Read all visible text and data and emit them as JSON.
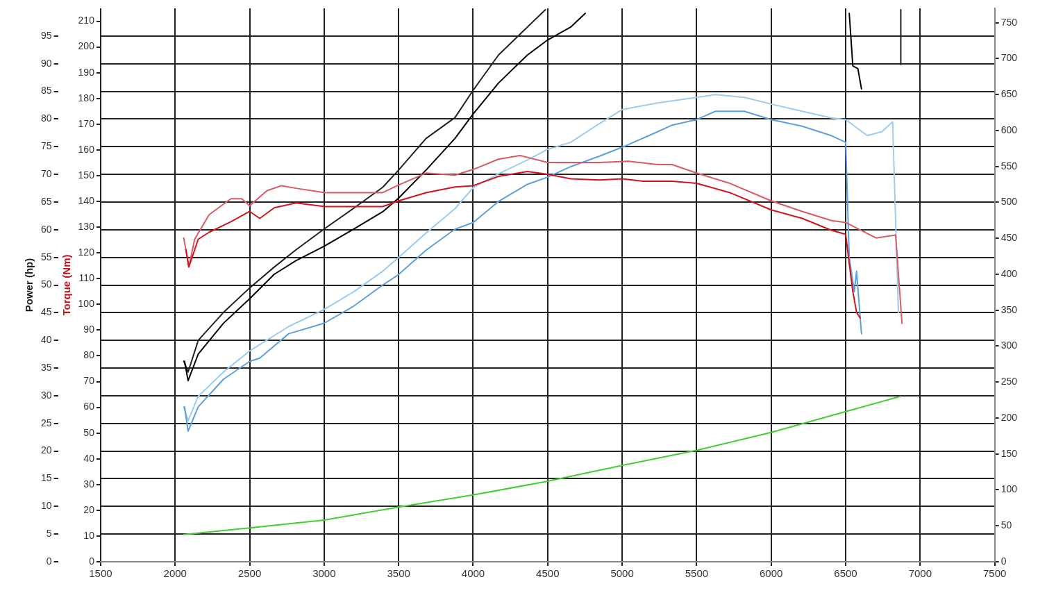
{
  "chart_data": {
    "type": "line",
    "xlim": [
      1500,
      7500
    ],
    "xticks": [
      1500,
      2000,
      2500,
      3000,
      3500,
      4000,
      4500,
      5000,
      5500,
      6000,
      6500,
      7000,
      7500
    ],
    "ylabel": "Power (hp)",
    "ylim": [
      0,
      100
    ],
    "yticks": [
      0,
      5,
      10,
      15,
      20,
      25,
      30,
      35,
      40,
      45,
      50,
      55,
      60,
      65,
      70,
      75,
      80,
      85,
      90,
      95
    ],
    "y3label": "Torque (Nm)",
    "y3lim": [
      0,
      215
    ],
    "y3ticks": [
      0,
      10,
      20,
      30,
      40,
      50,
      60,
      70,
      80,
      90,
      100,
      110,
      120,
      130,
      140,
      150,
      160,
      170,
      180,
      190,
      200,
      210
    ],
    "y2lim": [
      0,
      770
    ],
    "y2ticks": [
      0,
      50,
      100,
      150,
      200,
      250,
      300,
      350,
      400,
      450,
      500,
      550,
      600,
      650,
      700,
      750
    ],
    "grid": true,
    "legend": false,
    "marker": "none",
    "line_style": "solid",
    "series": [
      {
        "color": "#d0141c",
        "axis": "y3",
        "x": [
          2073,
          2092,
          2155,
          2228,
          2374,
          2500,
          2568,
          2665,
          2811,
          3005,
          3199,
          3393,
          3500,
          3684,
          3878,
          4000,
          4170,
          4364,
          4500,
          4655,
          4849,
          5000,
          5141,
          5335,
          5500,
          5723,
          6000,
          6208,
          6403,
          6500,
          6524,
          6548,
          6573,
          6597
        ],
        "values": [
          121.2,
          114.5,
          125.3,
          128.0,
          132.1,
          136.1,
          133.4,
          137.5,
          139.4,
          138.0,
          138.0,
          138.0,
          140.2,
          143.4,
          145.6,
          146.1,
          149.7,
          151.6,
          150.5,
          148.8,
          148.3,
          148.8,
          147.8,
          147.8,
          147.0,
          143.4,
          136.7,
          133.4,
          128.8,
          127.2,
          115.8,
          105.0,
          96.9,
          94.7
        ]
      },
      {
        "color": "#d85a62",
        "axis": "y3",
        "x": [
          2058,
          2092,
          2131,
          2228,
          2374,
          2447,
          2500,
          2617,
          2714,
          2811,
          3005,
          3199,
          3393,
          3490,
          3684,
          3878,
          4000,
          4170,
          4315,
          4500,
          4655,
          4849,
          5043,
          5238,
          5335,
          5500,
          5723,
          6000,
          6208,
          6403,
          6500,
          6703,
          6835,
          6878
        ],
        "values": [
          125.8,
          114.5,
          125.3,
          134.8,
          141.0,
          141.0,
          138.3,
          144.2,
          146.1,
          145.1,
          143.4,
          143.4,
          143.4,
          146.1,
          151.0,
          150.2,
          152.4,
          156.4,
          157.8,
          155.1,
          155.1,
          155.1,
          155.6,
          154.3,
          154.3,
          151.0,
          147.0,
          140.2,
          136.1,
          132.6,
          131.8,
          125.8,
          126.9,
          92.6
        ]
      },
      {
        "color": "#5a9fe0",
        "axis": "y",
        "x": [
          2063,
          2087,
          2155,
          2325,
          2500,
          2568,
          2762,
          3000,
          3199,
          3393,
          3500,
          3684,
          3878,
          4000,
          4170,
          4364,
          4500,
          4655,
          4849,
          5000,
          5238,
          5335,
          5500,
          5626,
          5820,
          6000,
          6208,
          6403,
          6500,
          6524,
          6558,
          6573,
          6606
        ],
        "values": [
          28.0,
          23.6,
          28.0,
          33.0,
          36.2,
          36.8,
          41.2,
          43.1,
          46.2,
          50.0,
          51.9,
          56.3,
          60.1,
          61.3,
          65.1,
          68.2,
          69.5,
          71.4,
          73.3,
          74.9,
          77.7,
          78.9,
          79.9,
          81.4,
          81.4,
          79.9,
          78.7,
          77.0,
          75.8,
          55.0,
          48.8,
          52.5,
          41.2
        ]
      },
      {
        "color": "#9ccbf0",
        "axis": "y",
        "x": [
          2058,
          2087,
          2155,
          2325,
          2500,
          2762,
          3000,
          3199,
          3393,
          3500,
          3684,
          3878,
          4000,
          4170,
          4364,
          4500,
          4655,
          4849,
          5000,
          5238,
          5500,
          5626,
          5820,
          6000,
          6208,
          6403,
          6500,
          6645,
          6743,
          6815,
          6854
        ],
        "values": [
          28.0,
          25.5,
          29.9,
          34.3,
          38.1,
          42.5,
          45.6,
          48.8,
          52.5,
          55.0,
          59.4,
          63.8,
          67.6,
          70.1,
          72.6,
          74.5,
          75.8,
          79.2,
          81.7,
          82.9,
          83.9,
          84.4,
          83.9,
          82.7,
          81.4,
          80.2,
          79.9,
          77.0,
          77.7,
          79.5,
          45.0
        ]
      },
      {
        "color": "#000000",
        "axis": "y2",
        "x": [
          2063,
          2087,
          2155,
          2325,
          2500,
          2665,
          2811,
          3000,
          3199,
          3393,
          3500,
          3684,
          3878,
          4000,
          4170,
          4364,
          4500,
          4655,
          4752,
          6520,
          6524,
          6548,
          6582,
          6606
        ],
        "values": [
          279,
          252,
          289,
          332,
          366,
          400,
          419,
          439,
          463,
          487,
          506,
          545,
          589,
          623,
          666,
          705,
          726,
          744,
          763,
          null,
          763,
          690,
          686,
          658
        ]
      },
      {
        "color": "#202020",
        "axis": "y2",
        "x": [
          2058,
          2087,
          2155,
          2325,
          2500,
          2665,
          2811,
          3000,
          3199,
          3393,
          3500,
          3684,
          3878,
          4000,
          4170,
          4364,
          4485,
          4600,
          6870,
          6870
        ],
        "values": [
          279,
          264,
          308,
          347,
          381,
          410,
          434,
          463,
          492,
          521,
          545,
          589,
          618,
          656,
          705,
          744,
          768,
          null,
          768,
          692
        ]
      },
      {
        "color": "#44cc33",
        "axis": "y2",
        "x": [
          2058,
          2500,
          3000,
          3500,
          4000,
          4500,
          5000,
          5500,
          6000,
          6500,
          6865
        ],
        "values": [
          38,
          47,
          58,
          76,
          93,
          112,
          134,
          155,
          180,
          209,
          230
        ]
      }
    ]
  }
}
